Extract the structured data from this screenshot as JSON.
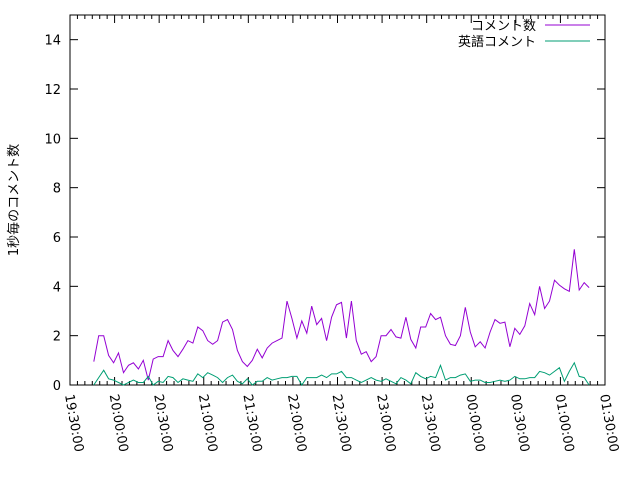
{
  "chart_data": {
    "type": "line",
    "title": "",
    "xlabel": "",
    "ylabel": "1秒毎のコメント数",
    "ylim": [
      0,
      15
    ],
    "xlim": [
      "19:30:00",
      "01:30:00"
    ],
    "grid": false,
    "legend_position": "top-right",
    "y_ticks": [
      "0",
      "2",
      "4",
      "6",
      "8",
      "10",
      "12",
      "14"
    ],
    "x_ticks": [
      "19:30:00",
      "20:00:00",
      "20:30:00",
      "21:00:00",
      "21:30:00",
      "22:00:00",
      "22:30:00",
      "23:00:00",
      "23:30:00",
      "00:00:00",
      "00:30:00",
      "01:00:00",
      "01:30:00"
    ],
    "x": [
      "19:46:00",
      "19:49:20",
      "19:52:40",
      "19:56:00",
      "19:59:20",
      "20:02:40",
      "20:06:00",
      "20:09:20",
      "20:12:40",
      "20:16:00",
      "20:19:20",
      "20:22:40",
      "20:26:00",
      "20:29:20",
      "20:32:40",
      "20:36:00",
      "20:39:20",
      "20:42:40",
      "20:46:00",
      "20:49:20",
      "20:52:40",
      "20:56:00",
      "20:59:20",
      "21:02:40",
      "21:06:00",
      "21:09:20",
      "21:12:40",
      "21:16:00",
      "21:19:20",
      "21:22:40",
      "21:26:00",
      "21:29:20",
      "21:32:40",
      "21:36:00",
      "21:39:20",
      "21:42:40",
      "21:46:00",
      "21:49:20",
      "21:52:40",
      "21:56:00",
      "21:59:20",
      "22:02:40",
      "22:06:00",
      "22:09:20",
      "22:12:40",
      "22:16:00",
      "22:19:20",
      "22:22:40",
      "22:26:00",
      "22:29:20",
      "22:32:40",
      "22:36:00",
      "22:39:20",
      "22:42:40",
      "22:46:00",
      "22:49:20",
      "22:52:40",
      "22:56:00",
      "22:59:20",
      "23:02:40",
      "23:06:00",
      "23:09:20",
      "23:12:40",
      "23:16:00",
      "23:19:20",
      "23:22:40",
      "23:26:00",
      "23:29:20",
      "23:32:40",
      "23:36:00",
      "23:39:20",
      "23:42:40",
      "23:46:00",
      "23:49:20",
      "23:52:40",
      "23:56:00",
      "23:59:20",
      "00:02:40",
      "00:06:00",
      "00:09:20",
      "00:12:40",
      "00:16:00",
      "00:19:20",
      "00:22:40",
      "00:26:00",
      "00:29:20",
      "00:32:40",
      "00:36:00",
      "00:39:20",
      "00:42:40",
      "00:46:00",
      "00:49:20",
      "00:52:40",
      "00:56:00",
      "00:59:20",
      "01:02:40",
      "01:06:00",
      "01:09:20",
      "01:12:40",
      "01:16:00",
      "01:19:20"
    ],
    "series": [
      {
        "name": "コメント数",
        "color": "#9400d3",
        "values": [
          0.95,
          2.0,
          2.0,
          1.2,
          0.9,
          1.3,
          0.5,
          0.8,
          0.9,
          0.65,
          1.0,
          0.2,
          1.05,
          1.15,
          1.15,
          1.8,
          1.4,
          1.15,
          1.45,
          1.8,
          1.7,
          2.35,
          2.2,
          1.8,
          1.65,
          1.8,
          2.55,
          2.65,
          2.25,
          1.4,
          0.95,
          0.75,
          1.0,
          1.45,
          1.1,
          1.5,
          1.7,
          1.8,
          1.9,
          3.4,
          2.7,
          1.9,
          2.6,
          2.1,
          3.2,
          2.45,
          2.7,
          1.8,
          2.75,
          3.25,
          3.35,
          1.9,
          3.4,
          1.8,
          1.25,
          1.35,
          0.95,
          1.15,
          2.0,
          2.0,
          2.25,
          1.95,
          1.9,
          2.75,
          1.85,
          1.5,
          2.35,
          2.35,
          2.9,
          2.65,
          2.75,
          2.0,
          1.65,
          1.6,
          2.0,
          3.15,
          2.15,
          1.55,
          1.75,
          1.5,
          2.15,
          2.65,
          2.5,
          2.55,
          1.55,
          2.3,
          2.05,
          2.4,
          3.3,
          2.85,
          4.0,
          3.1,
          3.4,
          4.25,
          4.05,
          3.9,
          3.8,
          5.5,
          3.85,
          4.15,
          3.95
        ]
      },
      {
        "name": "英語コメント",
        "color": "#009e73",
        "values": [
          0,
          0.3,
          0.6,
          0.25,
          0.2,
          0.1,
          0,
          0.1,
          0.2,
          0.1,
          0.1,
          0.35,
          0,
          0.15,
          0.1,
          0.35,
          0.3,
          0.1,
          0.25,
          0.2,
          0.15,
          0.45,
          0.3,
          0.5,
          0.4,
          0.3,
          0.1,
          0.3,
          0.4,
          0.15,
          0.05,
          0.25,
          0,
          0.15,
          0.15,
          0.3,
          0.2,
          0.25,
          0.3,
          0.3,
          0.35,
          0.35,
          0,
          0.3,
          0.3,
          0.3,
          0.4,
          0.3,
          0.45,
          0.45,
          0.55,
          0.3,
          0.3,
          0.2,
          0.1,
          0.2,
          0.3,
          0.2,
          0.15,
          0.25,
          0.15,
          0.05,
          0.3,
          0.2,
          0.05,
          0.5,
          0.35,
          0.25,
          0.35,
          0.3,
          0.8,
          0.2,
          0.3,
          0.3,
          0.4,
          0.45,
          0.15,
          0.2,
          0.2,
          0.1,
          0.1,
          0.15,
          0.2,
          0.15,
          0.2,
          0.35,
          0.25,
          0.25,
          0.3,
          0.3,
          0.55,
          0.5,
          0.4,
          0.55,
          0.7,
          0.15,
          0.55,
          0.9,
          0.35,
          0.3,
          0
        ]
      }
    ]
  }
}
